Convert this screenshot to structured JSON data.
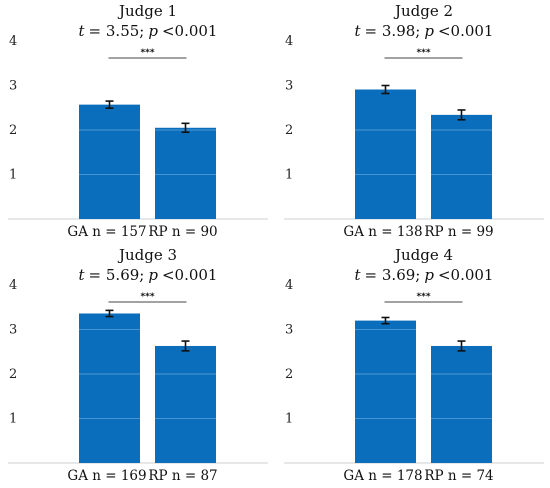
{
  "colors": {
    "bar": "#0a6ebd",
    "gridline": "#5fa3d9",
    "axis": "#cfcfcf",
    "errorbar": "#111111"
  },
  "chart_data": [
    {
      "type": "bar",
      "title": "Judge 1",
      "statistic": {
        "t_label": "t",
        "t_value": "= 3.55;",
        "p_label": "p",
        "p_value": "<0.001"
      },
      "significance": "***",
      "ylim": [
        0,
        4
      ],
      "yticks": [
        "1",
        "2",
        "3",
        "4"
      ],
      "grid": true,
      "categories": [
        "GA n = 157",
        "RP n = 90"
      ],
      "values": [
        2.57,
        2.05
      ],
      "errors": [
        0.08,
        0.1
      ]
    },
    {
      "type": "bar",
      "title": "Judge 2",
      "statistic": {
        "t_label": "t",
        "t_value": "= 3.98;",
        "p_label": "p",
        "p_value": "<0.001"
      },
      "significance": "***",
      "ylim": [
        0,
        4
      ],
      "yticks": [
        "1",
        "2",
        "3",
        "4"
      ],
      "grid": true,
      "categories": [
        "GA n = 138",
        "RP n = 99"
      ],
      "values": [
        2.91,
        2.34
      ],
      "errors": [
        0.09,
        0.11
      ]
    },
    {
      "type": "bar",
      "title": "Judge 3",
      "statistic": {
        "t_label": "t",
        "t_value": "= 5.69;",
        "p_label": "p",
        "p_value": "<0.001"
      },
      "significance": "***",
      "ylim": [
        0,
        4
      ],
      "yticks": [
        "1",
        "2",
        "3",
        "4"
      ],
      "grid": true,
      "categories": [
        "GA n = 169",
        "RP n = 87"
      ],
      "values": [
        3.36,
        2.63
      ],
      "errors": [
        0.07,
        0.11
      ]
    },
    {
      "type": "bar",
      "title": "Judge 4",
      "statistic": {
        "t_label": "t",
        "t_value": "= 3.69;",
        "p_label": "p",
        "p_value": "<0.001"
      },
      "significance": "***",
      "ylim": [
        0,
        4
      ],
      "yticks": [
        "1",
        "2",
        "3",
        "4"
      ],
      "grid": true,
      "categories": [
        "GA n = 178",
        "RP n = 74"
      ],
      "values": [
        3.2,
        2.63
      ],
      "errors": [
        0.07,
        0.11
      ]
    }
  ]
}
